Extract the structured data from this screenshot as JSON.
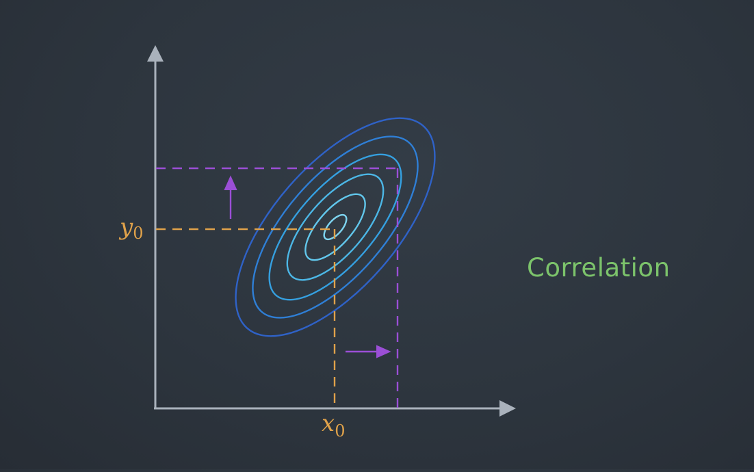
{
  "title": "Correlation",
  "labels": {
    "y_axis_point": "y",
    "y_axis_sub": "0",
    "x_axis_point": "x",
    "x_axis_sub": "0"
  },
  "colors": {
    "axis": "#aab2bc",
    "guide_orange": "#e0a24a",
    "guide_purple": "#9b4fd6",
    "title_green": "#7cc36b",
    "contours": [
      "#2f62c7",
      "#2f7fd6",
      "#35a0e0",
      "#4cb7e6",
      "#62c7ec",
      "#7ed4f0"
    ]
  },
  "contour_levels": 6
}
